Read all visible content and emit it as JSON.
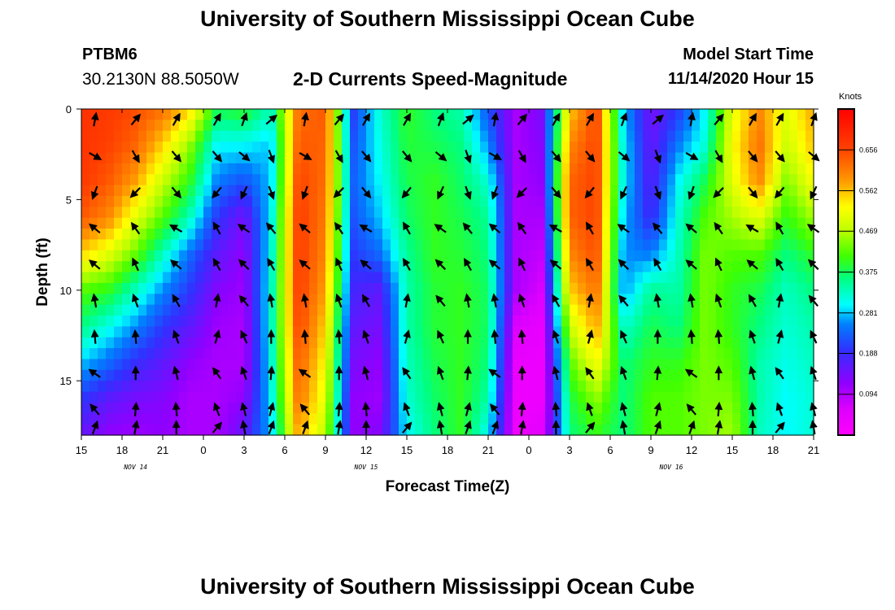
{
  "header": {
    "title": "University of Southern Mississippi Ocean Cube",
    "station_id": "PTBM6",
    "station_coords": "30.2130N 88.5050W",
    "subtitle": "2-D Currents Speed-Magnitude",
    "model_start_label": "Model Start Time",
    "model_start_value": "11/14/2020 Hour 15"
  },
  "footer": {
    "title": "University of Southern Mississippi Ocean Cube"
  },
  "chart_data": {
    "type": "heatmap",
    "title": "2-D Currents Speed-Magnitude",
    "xlabel": "Forecast Time(Z)",
    "ylabel": "Depth (ft)",
    "x_range_hours": [
      0,
      54
    ],
    "ylim": [
      0,
      18
    ],
    "y_inverted": true,
    "x_tick_labels": [
      "15",
      "18",
      "21",
      "0",
      "3",
      "6",
      "9",
      "12",
      "15",
      "18",
      "21",
      "0",
      "3",
      "6",
      "9",
      "12",
      "15",
      "18",
      "21"
    ],
    "y_ticks": [
      0,
      5,
      10,
      15
    ],
    "date_labels": [
      {
        "label": "NOV 14",
        "hour": 4
      },
      {
        "label": "NOV 15",
        "hour": 21
      },
      {
        "label": "NOV 16",
        "hour": 43.5
      }
    ],
    "colorbar": {
      "unit": "Knots",
      "min": 0,
      "max": 0.75,
      "tick_values": [
        0.656,
        0.562,
        0.469,
        0.375,
        0.281,
        0.188,
        0.094
      ]
    },
    "depth_levels_ft": [
      0,
      2,
      4,
      6,
      8,
      10,
      12,
      14,
      16,
      18
    ],
    "speed_columns": [
      {
        "hour": 0,
        "speeds": [
          0.68,
          0.68,
          0.67,
          0.64,
          0.55,
          0.42,
          0.36,
          0.28,
          0.2,
          0.15
        ]
      },
      {
        "hour": 2,
        "speeds": [
          0.67,
          0.66,
          0.64,
          0.6,
          0.5,
          0.4,
          0.31,
          0.24,
          0.16,
          0.12
        ]
      },
      {
        "hour": 4,
        "speeds": [
          0.65,
          0.63,
          0.58,
          0.5,
          0.43,
          0.33,
          0.26,
          0.19,
          0.14,
          0.11
        ]
      },
      {
        "hour": 6,
        "speeds": [
          0.62,
          0.55,
          0.48,
          0.42,
          0.33,
          0.26,
          0.2,
          0.16,
          0.13,
          0.12
        ]
      },
      {
        "hour": 8,
        "speeds": [
          0.55,
          0.45,
          0.4,
          0.33,
          0.24,
          0.2,
          0.16,
          0.12,
          0.1,
          0.1
        ]
      },
      {
        "hour": 10,
        "speeds": [
          0.38,
          0.3,
          0.25,
          0.2,
          0.16,
          0.13,
          0.11,
          0.1,
          0.1,
          0.1
        ]
      },
      {
        "hour": 12,
        "speeds": [
          0.4,
          0.3,
          0.22,
          0.14,
          0.12,
          0.11,
          0.1,
          0.1,
          0.12,
          0.16
        ]
      },
      {
        "hour": 14,
        "speeds": [
          0.33,
          0.28,
          0.28,
          0.3,
          0.31,
          0.32,
          0.32,
          0.31,
          0.3,
          0.28
        ]
      },
      {
        "hour": 16,
        "speeds": [
          0.62,
          0.64,
          0.66,
          0.67,
          0.67,
          0.67,
          0.66,
          0.64,
          0.62,
          0.58
        ]
      },
      {
        "hour": 18,
        "speeds": [
          0.64,
          0.63,
          0.62,
          0.61,
          0.6,
          0.58,
          0.55,
          0.52,
          0.5,
          0.47
        ]
      },
      {
        "hour": 20,
        "speeds": [
          0.2,
          0.22,
          0.23,
          0.22,
          0.2,
          0.18,
          0.16,
          0.14,
          0.12,
          0.12
        ]
      },
      {
        "hour": 22,
        "speeds": [
          0.32,
          0.31,
          0.3,
          0.28,
          0.24,
          0.16,
          0.14,
          0.12,
          0.11,
          0.13
        ]
      },
      {
        "hour": 24,
        "speeds": [
          0.4,
          0.39,
          0.38,
          0.37,
          0.35,
          0.34,
          0.34,
          0.33,
          0.32,
          0.3
        ]
      },
      {
        "hour": 26,
        "speeds": [
          0.36,
          0.38,
          0.4,
          0.4,
          0.4,
          0.39,
          0.39,
          0.38,
          0.37,
          0.36
        ]
      },
      {
        "hour": 28,
        "speeds": [
          0.34,
          0.36,
          0.37,
          0.38,
          0.39,
          0.4,
          0.4,
          0.4,
          0.4,
          0.4
        ]
      },
      {
        "hour": 30,
        "speeds": [
          0.22,
          0.26,
          0.32,
          0.35,
          0.36,
          0.37,
          0.37,
          0.36,
          0.34,
          0.3
        ]
      },
      {
        "hour": 32,
        "speeds": [
          0.1,
          0.1,
          0.1,
          0.1,
          0.1,
          0.1,
          0.06,
          0.04,
          0.03,
          0.03
        ]
      },
      {
        "hour": 34,
        "speeds": [
          0.14,
          0.13,
          0.12,
          0.1,
          0.08,
          0.06,
          0.04,
          0.03,
          0.03,
          0.05
        ]
      },
      {
        "hour": 36,
        "speeds": [
          0.55,
          0.6,
          0.63,
          0.63,
          0.6,
          0.55,
          0.48,
          0.42,
          0.38,
          0.36
        ]
      },
      {
        "hour": 38,
        "speeds": [
          0.66,
          0.66,
          0.66,
          0.66,
          0.65,
          0.62,
          0.58,
          0.52,
          0.45,
          0.4
        ]
      },
      {
        "hour": 40,
        "speeds": [
          0.28,
          0.3,
          0.3,
          0.28,
          0.26,
          0.26,
          0.32,
          0.36,
          0.36,
          0.36
        ]
      },
      {
        "hour": 42,
        "speeds": [
          0.14,
          0.15,
          0.16,
          0.18,
          0.25,
          0.35,
          0.38,
          0.4,
          0.42,
          0.42
        ]
      },
      {
        "hour": 44,
        "speeds": [
          0.2,
          0.25,
          0.3,
          0.32,
          0.33,
          0.34,
          0.36,
          0.4,
          0.42,
          0.42
        ]
      },
      {
        "hour": 46,
        "speeds": [
          0.3,
          0.32,
          0.38,
          0.42,
          0.44,
          0.44,
          0.44,
          0.44,
          0.44,
          0.44
        ]
      },
      {
        "hour": 48,
        "speeds": [
          0.5,
          0.52,
          0.5,
          0.46,
          0.42,
          0.4,
          0.4,
          0.42,
          0.44,
          0.46
        ]
      },
      {
        "hour": 50,
        "speeds": [
          0.6,
          0.62,
          0.6,
          0.5,
          0.42,
          0.38,
          0.36,
          0.34,
          0.34,
          0.33
        ]
      },
      {
        "hour": 52,
        "speeds": [
          0.5,
          0.48,
          0.44,
          0.4,
          0.36,
          0.33,
          0.32,
          0.31,
          0.3,
          0.3
        ]
      },
      {
        "hour": 54,
        "speeds": [
          0.58,
          0.56,
          0.52,
          0.46,
          0.4,
          0.36,
          0.34,
          0.33,
          0.32,
          0.32
        ]
      }
    ],
    "vector_times_hours": [
      1,
      4,
      7,
      10,
      12,
      14,
      16.5,
      19,
      21,
      24,
      26.5,
      28.5,
      30.5,
      32.5,
      35,
      37.5,
      40,
      42.5,
      45,
      47,
      49.5,
      51.5,
      54
    ],
    "vector_depths_ft": [
      0,
      2,
      4,
      6,
      8,
      10,
      12,
      14,
      16,
      18
    ],
    "vector_rotation_deg": [
      [
        20,
        130,
        -150,
        -40,
        -40,
        0,
        5,
        -45,
        -30,
        30
      ],
      [
        30,
        140,
        -145,
        -45,
        -35,
        -30,
        -15,
        -10,
        -5,
        0
      ],
      [
        40,
        150,
        150,
        -50,
        -40,
        -20,
        -10,
        -5,
        5,
        10
      ]
    ]
  }
}
